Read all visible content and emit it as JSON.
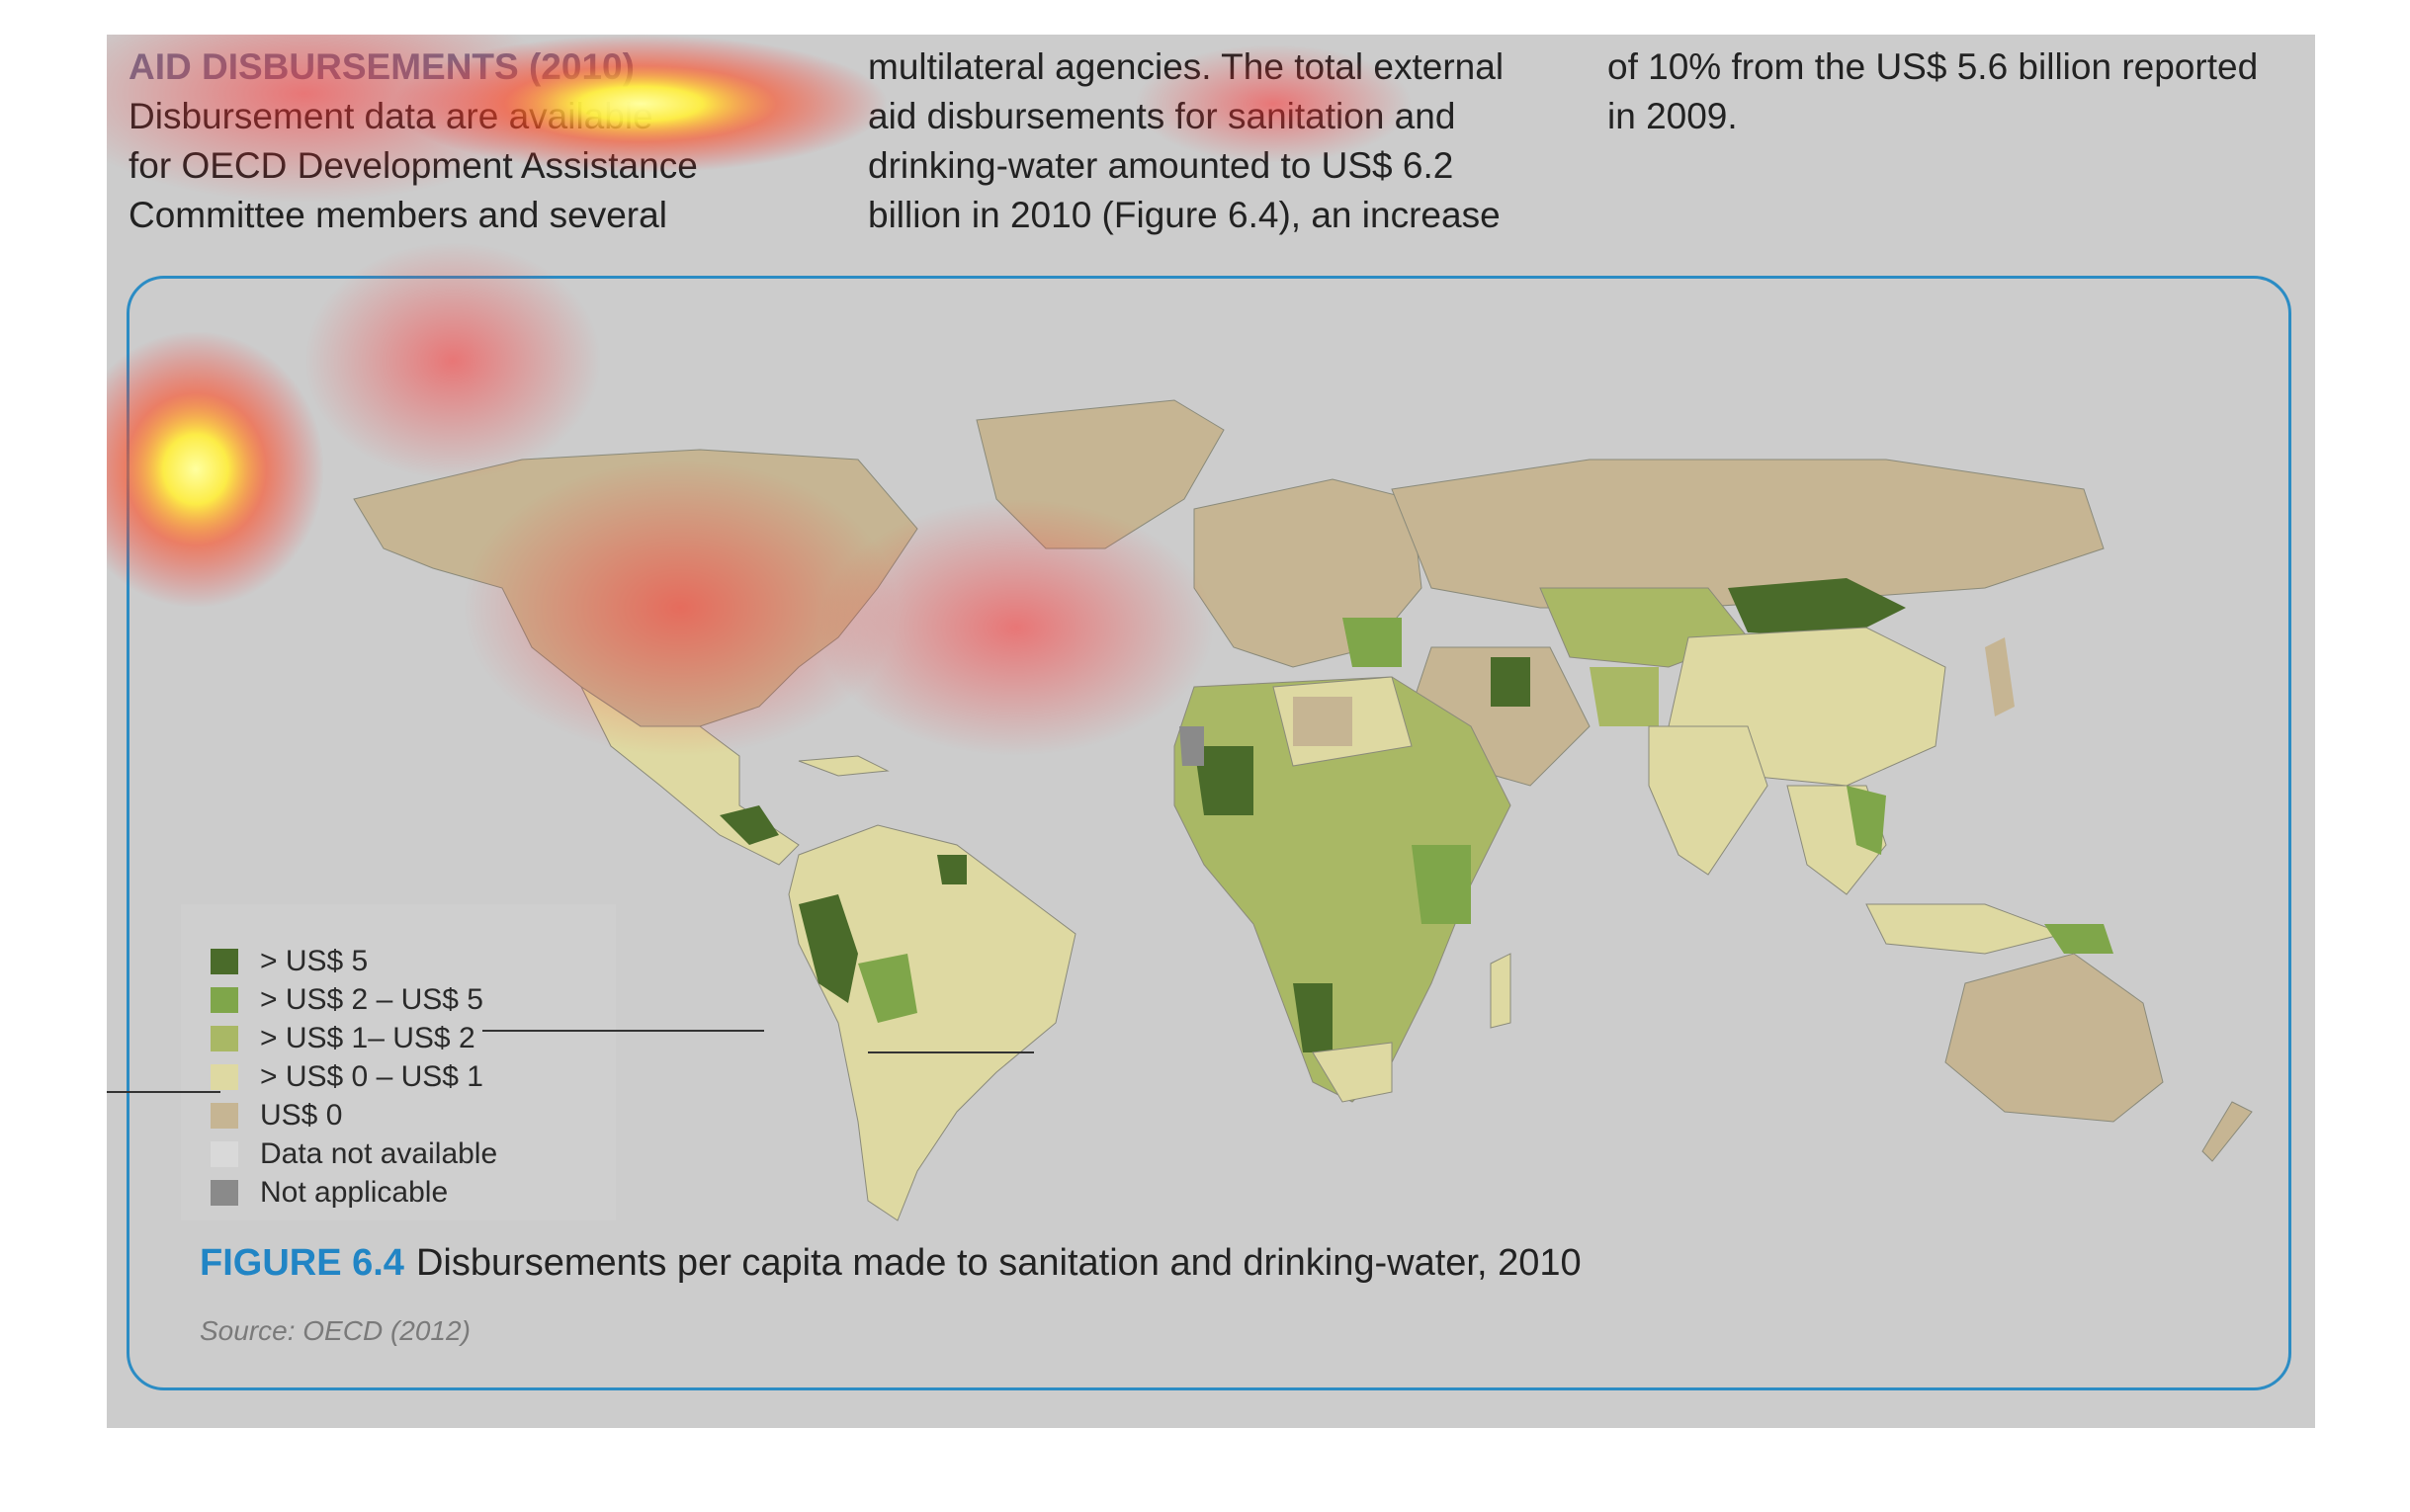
{
  "article": {
    "heading": "AID DISBURSEMENTS (2010)",
    "col1_lines": [
      "Disbursement data are available",
      "for OECD Development Assistance",
      "Committee members and several"
    ],
    "col2_lines": [
      "multilateral agencies. The total external",
      "aid disbursements for sanitation and",
      "drinking-water amounted to US$ 6.2",
      "billion in 2010 (Figure 6.4), an increase"
    ],
    "col3_lines": [
      "of 10% from the US$ 5.6 billion reported",
      "in 2009."
    ]
  },
  "figure": {
    "label": "FIGURE 6.4",
    "title": "Disbursements per capita made to sanitation and drinking-water, 2010",
    "source": "Source: OECD (2012)"
  },
  "legend": [
    {
      "label": "> US$ 5",
      "color": "#4a6b2a"
    },
    {
      "label": "> US$ 2 – US$ 5",
      "color": "#7fa64a"
    },
    {
      "label": "> US$ 1– US$ 2",
      "color": "#a9b865"
    },
    {
      "label": "> US$ 0 – US$ 1",
      "color": "#ded9a2"
    },
    {
      "label": "US$ 0",
      "color": "#c6b593"
    },
    {
      "label": "Data not available",
      "color": "#d9d9d9"
    },
    {
      "label": "Not applicable",
      "color": "#8a8a8a"
    }
  ],
  "colors": {
    "accent": "#2185c5",
    "panel_background": "#cccccc"
  }
}
